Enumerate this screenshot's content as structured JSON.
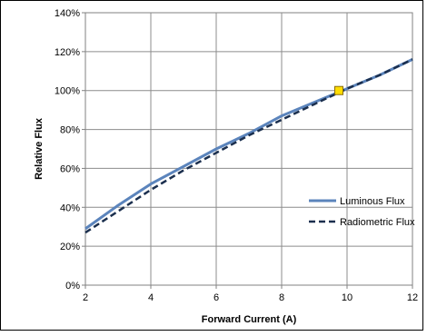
{
  "chart_data": {
    "type": "line",
    "xlabel": "Forward Current (A)",
    "ylabel": "Relative Flux",
    "xlim": [
      2,
      12
    ],
    "ylim": [
      0,
      140
    ],
    "x_ticks": [
      "2",
      "4",
      "6",
      "8",
      "10",
      "12"
    ],
    "y_ticks": [
      "0%",
      "20%",
      "40%",
      "60%",
      "80%",
      "100%",
      "120%",
      "140%"
    ],
    "grid": true,
    "legend": "right",
    "series": [
      {
        "name": "Luminous Flux",
        "color": "#5b84bc",
        "style": "solid",
        "x": [
          2,
          3,
          4,
          5,
          6,
          7,
          8,
          9,
          10,
          11,
          12
        ],
        "y": [
          29,
          41,
          52,
          61,
          70,
          78,
          87,
          94,
          101,
          108,
          116
        ]
      },
      {
        "name": "Radiometric Flux",
        "color": "#1b2f4e",
        "style": "dashed",
        "x": [
          2,
          3,
          4,
          5,
          6,
          7,
          8,
          9,
          10,
          11,
          12
        ],
        "y": [
          27,
          38,
          49,
          59,
          68,
          77,
          85,
          93,
          101,
          108,
          116
        ]
      }
    ],
    "annotations": [
      {
        "type": "marker",
        "shape": "square",
        "color": "#ffdd00",
        "x": 9.75,
        "y": 100
      }
    ]
  }
}
